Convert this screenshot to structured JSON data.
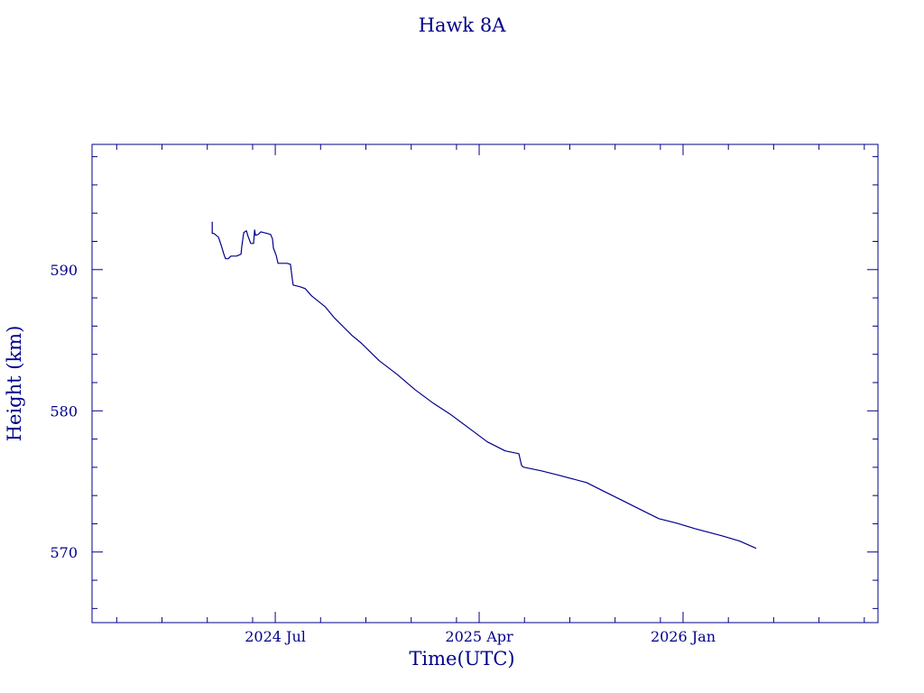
{
  "chart_data": {
    "type": "line",
    "title": "Hawk 8A",
    "xlabel": "Time(UTC)",
    "ylabel": "Height (km)",
    "x_unit": "decimal year",
    "xlim": [
      2023.826,
      2026.717
    ],
    "ylim": [
      565.0,
      598.87
    ],
    "x_ticks": [
      {
        "value": 2024.5,
        "label": "2024 Jul"
      },
      {
        "value": 2025.25,
        "label": "2025 Apr"
      },
      {
        "value": 2026.0,
        "label": "2026 Jan"
      }
    ],
    "y_ticks": [
      {
        "value": 570,
        "label": "570"
      },
      {
        "value": 580,
        "label": "580"
      },
      {
        "value": 590,
        "label": "590"
      }
    ],
    "grid": false,
    "color": "#00008b",
    "series": [
      {
        "name": "Hawk 8A",
        "x": [
          2024.268,
          2024.268,
          2024.274,
          2024.291,
          2024.301,
          2024.311,
          2024.317,
          2024.327,
          2024.337,
          2024.357,
          2024.374,
          2024.377,
          2024.384,
          2024.394,
          2024.4,
          2024.41,
          2024.42,
          2024.424,
          2024.427,
          2024.437,
          2024.447,
          2024.47,
          2024.483,
          2024.49,
          2024.493,
          2024.503,
          2024.51,
          2024.52,
          2024.543,
          2024.556,
          2024.563,
          2024.566,
          2024.59,
          2024.61,
          2024.633,
          2024.683,
          2024.716,
          2024.782,
          2024.815,
          2024.882,
          2024.948,
          2025.014,
          2025.081,
          2025.147,
          2025.214,
          2025.28,
          2025.346,
          2025.396,
          2025.406,
          2025.413,
          2025.479,
          2025.545,
          2025.645,
          2025.711,
          2025.778,
          2025.844,
          2025.911,
          2025.977,
          2026.043,
          2026.143,
          2026.209,
          2026.269
        ],
        "y": [
          593.39,
          592.56,
          592.56,
          592.3,
          591.73,
          591.09,
          590.77,
          590.77,
          590.96,
          590.96,
          591.09,
          591.66,
          592.62,
          592.75,
          592.36,
          591.85,
          591.85,
          592.81,
          592.43,
          592.49,
          592.68,
          592.56,
          592.49,
          592.17,
          591.53,
          591.02,
          590.45,
          590.45,
          590.45,
          590.38,
          589.3,
          588.91,
          588.79,
          588.66,
          588.15,
          587.38,
          586.61,
          585.34,
          584.82,
          583.55,
          582.59,
          581.5,
          580.54,
          579.71,
          578.75,
          577.8,
          577.16,
          576.96,
          576.13,
          576.01,
          575.75,
          575.43,
          574.92,
          574.28,
          573.64,
          573.0,
          572.36,
          572.04,
          571.66,
          571.15,
          570.77,
          570.26
        ]
      }
    ]
  }
}
